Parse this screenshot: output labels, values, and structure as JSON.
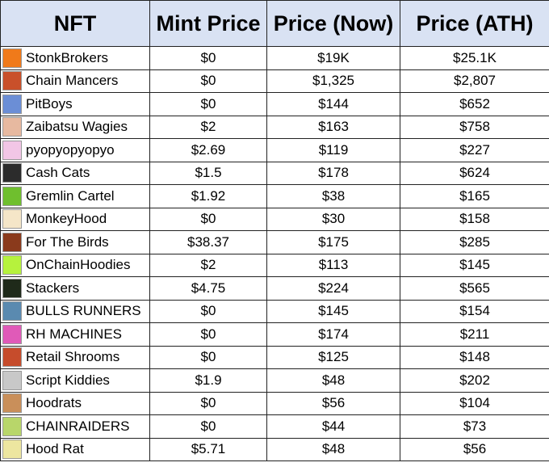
{
  "table": {
    "header": [
      "NFT",
      "Mint Price",
      "Price (Now)",
      "Price (ATH)"
    ],
    "rows": [
      [
        "StonkBrokers",
        "$0",
        "$19K",
        "$25.1K"
      ],
      [
        "Chain Mancers",
        "$0",
        "$1,325",
        "$2,807"
      ],
      [
        "PitBoys",
        "$0",
        "$144",
        "$652"
      ],
      [
        "Zaibatsu Wagies",
        "$2",
        "$163",
        "$758"
      ],
      [
        "pyopyopyopyo",
        "$2.69",
        "$119",
        "$227"
      ],
      [
        "Cash Cats",
        "$1.5",
        "$178",
        "$624"
      ],
      [
        "Gremlin Cartel",
        "$1.92",
        "$38",
        "$165"
      ],
      [
        "MonkeyHood",
        "$0",
        "$30",
        "$158"
      ],
      [
        "For The Birds",
        "$38.37",
        "$175",
        "$285"
      ],
      [
        "OnChainHoodies",
        "$2",
        "$113",
        "$145"
      ],
      [
        "Stackers",
        "$4.75",
        "$224",
        "$565"
      ],
      [
        "BULLS RUNNERS",
        "$0",
        "$145",
        "$154"
      ],
      [
        "RH MACHINES",
        "$0",
        "$174",
        "$211"
      ],
      [
        "Retail Shrooms",
        "$0",
        "$125",
        "$148"
      ],
      [
        "Script Kiddies",
        "$1.9",
        "$48",
        "$202"
      ],
      [
        "Hoodrats",
        "$0",
        "$56",
        "$104"
      ],
      [
        "CHAINRAIDERS",
        "$0",
        "$44",
        "$73"
      ],
      [
        "Hood Rat",
        "$5.71",
        "$48",
        "$56"
      ]
    ]
  }
}
